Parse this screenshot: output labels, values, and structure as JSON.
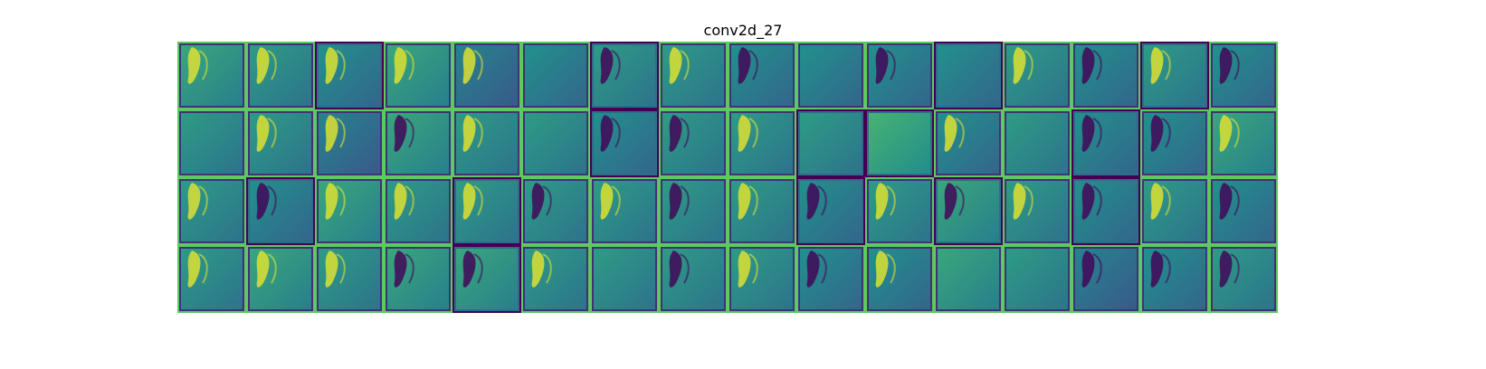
{
  "chart_data": {
    "type": "heatmap",
    "title": "conv2d_27",
    "description_free_grid": {
      "rows": 4,
      "cols": 16,
      "colormap": "viridis",
      "axes_visible": false
    },
    "colormap_stops": [
      "#440154",
      "#3b528b",
      "#21918c",
      "#5ec962",
      "#fde725"
    ],
    "tiles": [
      {
        "base": 0.55,
        "border": "light",
        "tail": "left-bright"
      },
      {
        "base": 0.5,
        "border": "light",
        "tail": "left-bright"
      },
      {
        "base": 0.45,
        "border": "dark",
        "tail": "left-bright"
      },
      {
        "base": 0.55,
        "border": "light",
        "tail": "left-bright"
      },
      {
        "base": 0.4,
        "border": "light",
        "tail": "left-bright"
      },
      {
        "base": 0.45,
        "border": "light",
        "tail": "none"
      },
      {
        "base": 0.5,
        "border": "dark",
        "tail": "left-dark"
      },
      {
        "base": 0.5,
        "border": "light",
        "tail": "left-bright"
      },
      {
        "base": 0.45,
        "border": "light",
        "tail": "left-dark"
      },
      {
        "base": 0.45,
        "border": "light",
        "tail": "none"
      },
      {
        "base": 0.45,
        "border": "light",
        "tail": "left-dark"
      },
      {
        "base": 0.45,
        "border": "dark",
        "tail": "none"
      },
      {
        "base": 0.5,
        "border": "light",
        "tail": "left-bright"
      },
      {
        "base": 0.45,
        "border": "light",
        "tail": "left-dark"
      },
      {
        "base": 0.5,
        "border": "dark",
        "tail": "left-bright"
      },
      {
        "base": 0.45,
        "border": "light",
        "tail": "left-dark"
      },
      {
        "base": 0.5,
        "border": "light",
        "tail": "none"
      },
      {
        "base": 0.5,
        "border": "light",
        "tail": "left-bright"
      },
      {
        "base": 0.4,
        "border": "light",
        "tail": "left-bright"
      },
      {
        "base": 0.55,
        "border": "light",
        "tail": "left-dark"
      },
      {
        "base": 0.5,
        "border": "light",
        "tail": "left-bright"
      },
      {
        "base": 0.5,
        "border": "light",
        "tail": "none"
      },
      {
        "base": 0.45,
        "border": "dark",
        "tail": "left-dark"
      },
      {
        "base": 0.5,
        "border": "light",
        "tail": "left-dark"
      },
      {
        "base": 0.5,
        "border": "light",
        "tail": "left-bright"
      },
      {
        "base": 0.5,
        "border": "dark",
        "tail": "none"
      },
      {
        "base": 0.6,
        "border": "dark",
        "tail": "none"
      },
      {
        "base": 0.45,
        "border": "light",
        "tail": "left-bright"
      },
      {
        "base": 0.5,
        "border": "light",
        "tail": "none"
      },
      {
        "base": 0.45,
        "border": "dark",
        "tail": "left-dark"
      },
      {
        "base": 0.45,
        "border": "light",
        "tail": "left-dark"
      },
      {
        "base": 0.55,
        "border": "light",
        "tail": "left-bright"
      },
      {
        "base": 0.5,
        "border": "light",
        "tail": "left-bright"
      },
      {
        "base": 0.45,
        "border": "dark",
        "tail": "left-dark"
      },
      {
        "base": 0.55,
        "border": "light",
        "tail": "left-bright"
      },
      {
        "base": 0.5,
        "border": "light",
        "tail": "left-bright"
      },
      {
        "base": 0.5,
        "border": "dark",
        "tail": "left-bright"
      },
      {
        "base": 0.5,
        "border": "light",
        "tail": "left-dark"
      },
      {
        "base": 0.5,
        "border": "light",
        "tail": "left-bright"
      },
      {
        "base": 0.5,
        "border": "light",
        "tail": "left-dark"
      },
      {
        "base": 0.5,
        "border": "light",
        "tail": "left-bright"
      },
      {
        "base": 0.45,
        "border": "dark",
        "tail": "left-dark"
      },
      {
        "base": 0.5,
        "border": "light",
        "tail": "left-bright"
      },
      {
        "base": 0.55,
        "border": "dark",
        "tail": "left-dark"
      },
      {
        "base": 0.5,
        "border": "light",
        "tail": "left-bright"
      },
      {
        "base": 0.45,
        "border": "dark",
        "tail": "left-dark"
      },
      {
        "base": 0.5,
        "border": "light",
        "tail": "left-bright"
      },
      {
        "base": 0.45,
        "border": "light",
        "tail": "left-dark"
      },
      {
        "base": 0.5,
        "border": "light",
        "tail": "left-bright"
      },
      {
        "base": 0.55,
        "border": "light",
        "tail": "left-bright"
      },
      {
        "base": 0.5,
        "border": "light",
        "tail": "left-bright"
      },
      {
        "base": 0.55,
        "border": "light",
        "tail": "left-dark"
      },
      {
        "base": 0.55,
        "border": "dark",
        "tail": "left-dark"
      },
      {
        "base": 0.5,
        "border": "light",
        "tail": "left-bright"
      },
      {
        "base": 0.5,
        "border": "light",
        "tail": "none"
      },
      {
        "base": 0.5,
        "border": "light",
        "tail": "left-dark"
      },
      {
        "base": 0.5,
        "border": "light",
        "tail": "left-bright"
      },
      {
        "base": 0.45,
        "border": "light",
        "tail": "left-dark"
      },
      {
        "base": 0.45,
        "border": "light",
        "tail": "left-bright"
      },
      {
        "base": 0.55,
        "border": "light",
        "tail": "none"
      },
      {
        "base": 0.5,
        "border": "light",
        "tail": "none"
      },
      {
        "base": 0.4,
        "border": "light",
        "tail": "left-dark"
      },
      {
        "base": 0.45,
        "border": "light",
        "tail": "left-dark"
      },
      {
        "base": 0.5,
        "border": "light",
        "tail": "left-dark"
      }
    ]
  }
}
